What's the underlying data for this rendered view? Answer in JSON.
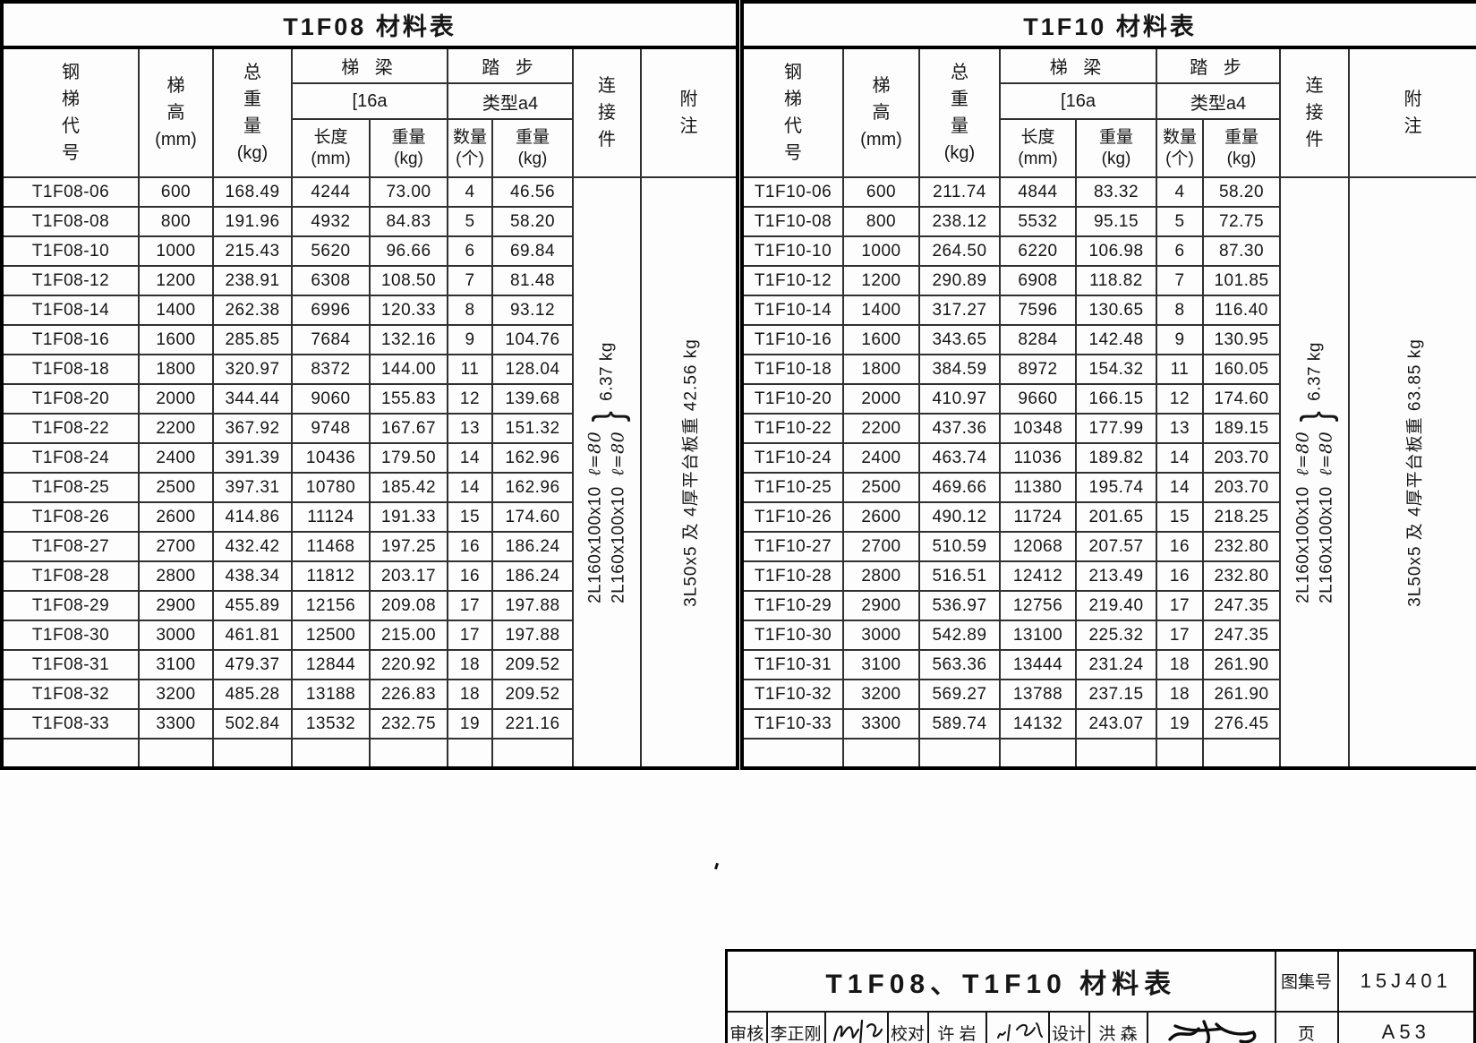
{
  "page": {
    "background": "#fdfdfd",
    "ink": "#161616"
  },
  "tables": [
    {
      "title": "T1F08 材料表",
      "header": {
        "code": "钢\n梯\n代\n号",
        "height": "梯\n高\n(mm)",
        "total_weight": "总\n重\n量\n(kg)",
        "beam_group": "梯  梁",
        "beam_spec": "[16a",
        "step_group": "踏  步",
        "step_type": "类型a4",
        "length": "长度\n(mm)",
        "beam_weight": "重量\n(kg)",
        "qty": "数量\n(个)",
        "step_weight": "重量\n(kg)",
        "connector": "连\n接\n件",
        "note": "附\n注"
      },
      "connector": {
        "spec1": "2L160x100x10",
        "len1": "ℓ=80",
        "spec2": "2L160x100x10",
        "len2": "ℓ=80",
        "weight": "6.37 kg"
      },
      "note": "3L50x5 及 4厚平台板重 42.56 kg",
      "first_row": [
        "T1F08-06",
        "600",
        "168.49",
        "4244",
        "73.00",
        "4",
        "46.56"
      ],
      "rows": [
        [
          "T1F08-08",
          "800",
          "191.96",
          "4932",
          "84.83",
          "5",
          "58.20"
        ],
        [
          "T1F08-10",
          "1000",
          "215.43",
          "5620",
          "96.66",
          "6",
          "69.84"
        ],
        [
          "T1F08-12",
          "1200",
          "238.91",
          "6308",
          "108.50",
          "7",
          "81.48"
        ],
        [
          "T1F08-14",
          "1400",
          "262.38",
          "6996",
          "120.33",
          "8",
          "93.12"
        ],
        [
          "T1F08-16",
          "1600",
          "285.85",
          "7684",
          "132.16",
          "9",
          "104.76"
        ],
        [
          "T1F08-18",
          "1800",
          "320.97",
          "8372",
          "144.00",
          "11",
          "128.04"
        ],
        [
          "T1F08-20",
          "2000",
          "344.44",
          "9060",
          "155.83",
          "12",
          "139.68"
        ],
        [
          "T1F08-22",
          "2200",
          "367.92",
          "9748",
          "167.67",
          "13",
          "151.32"
        ],
        [
          "T1F08-24",
          "2400",
          "391.39",
          "10436",
          "179.50",
          "14",
          "162.96"
        ],
        [
          "T1F08-25",
          "2500",
          "397.31",
          "10780",
          "185.42",
          "14",
          "162.96"
        ],
        [
          "T1F08-26",
          "2600",
          "414.86",
          "11124",
          "191.33",
          "15",
          "174.60"
        ],
        [
          "T1F08-27",
          "2700",
          "432.42",
          "11468",
          "197.25",
          "16",
          "186.24"
        ],
        [
          "T1F08-28",
          "2800",
          "438.34",
          "11812",
          "203.17",
          "16",
          "186.24"
        ],
        [
          "T1F08-29",
          "2900",
          "455.89",
          "12156",
          "209.08",
          "17",
          "197.88"
        ],
        [
          "T1F08-30",
          "3000",
          "461.81",
          "12500",
          "215.00",
          "17",
          "197.88"
        ],
        [
          "T1F08-31",
          "3100",
          "479.37",
          "12844",
          "220.92",
          "18",
          "209.52"
        ],
        [
          "T1F08-32",
          "3200",
          "485.28",
          "13188",
          "226.83",
          "18",
          "209.52"
        ],
        [
          "T1F08-33",
          "3300",
          "502.84",
          "13532",
          "232.75",
          "19",
          "221.16"
        ],
        [
          "",
          "",
          "",
          "",
          "",
          "",
          ""
        ]
      ]
    },
    {
      "title": "T1F10 材料表",
      "header": {
        "code": "钢\n梯\n代\n号",
        "height": "梯\n高\n(mm)",
        "total_weight": "总\n重\n量\n(kg)",
        "beam_group": "梯  梁",
        "beam_spec": "[16a",
        "step_group": "踏  步",
        "step_type": "类型a4",
        "length": "长度\n(mm)",
        "beam_weight": "重量\n(kg)",
        "qty": "数量\n(个)",
        "step_weight": "重量\n(kg)",
        "connector": "连\n接\n件",
        "note": "附\n注"
      },
      "connector": {
        "spec1": "2L160x100x10",
        "len1": "ℓ=80",
        "spec2": "2L160x100x10",
        "len2": "ℓ=80",
        "weight": "6.37 kg"
      },
      "note": "3L50x5 及 4厚平台板重 63.85 kg",
      "first_row": [
        "T1F10-06",
        "600",
        "211.74",
        "4844",
        "83.32",
        "4",
        "58.20"
      ],
      "rows": [
        [
          "T1F10-08",
          "800",
          "238.12",
          "5532",
          "95.15",
          "5",
          "72.75"
        ],
        [
          "T1F10-10",
          "1000",
          "264.50",
          "6220",
          "106.98",
          "6",
          "87.30"
        ],
        [
          "T1F10-12",
          "1200",
          "290.89",
          "6908",
          "118.82",
          "7",
          "101.85"
        ],
        [
          "T1F10-14",
          "1400",
          "317.27",
          "7596",
          "130.65",
          "8",
          "116.40"
        ],
        [
          "T1F10-16",
          "1600",
          "343.65",
          "8284",
          "142.48",
          "9",
          "130.95"
        ],
        [
          "T1F10-18",
          "1800",
          "384.59",
          "8972",
          "154.32",
          "11",
          "160.05"
        ],
        [
          "T1F10-20",
          "2000",
          "410.97",
          "9660",
          "166.15",
          "12",
          "174.60"
        ],
        [
          "T1F10-22",
          "2200",
          "437.36",
          "10348",
          "177.99",
          "13",
          "189.15"
        ],
        [
          "T1F10-24",
          "2400",
          "463.74",
          "11036",
          "189.82",
          "14",
          "203.70"
        ],
        [
          "T1F10-25",
          "2500",
          "469.66",
          "11380",
          "195.74",
          "14",
          "203.70"
        ],
        [
          "T1F10-26",
          "2600",
          "490.12",
          "11724",
          "201.65",
          "15",
          "218.25"
        ],
        [
          "T1F10-27",
          "2700",
          "510.59",
          "12068",
          "207.57",
          "16",
          "232.80"
        ],
        [
          "T1F10-28",
          "2800",
          "516.51",
          "12412",
          "213.49",
          "16",
          "232.80"
        ],
        [
          "T1F10-29",
          "2900",
          "536.97",
          "12756",
          "219.40",
          "17",
          "247.35"
        ],
        [
          "T1F10-30",
          "3000",
          "542.89",
          "13100",
          "225.32",
          "17",
          "247.35"
        ],
        [
          "T1F10-31",
          "3100",
          "563.36",
          "13444",
          "231.24",
          "18",
          "261.90"
        ],
        [
          "T1F10-32",
          "3200",
          "569.27",
          "13788",
          "237.15",
          "18",
          "261.90"
        ],
        [
          "T1F10-33",
          "3300",
          "589.74",
          "14132",
          "243.07",
          "19",
          "276.45"
        ],
        [
          "",
          "",
          "",
          "",
          "",
          "",
          ""
        ]
      ]
    }
  ],
  "title_block": {
    "title": "T1F08、T1F10 材料表",
    "atlas_label": "图集号",
    "atlas_no": "15J401",
    "page_label": "页",
    "page_no": "A53",
    "review_label": "审核",
    "review_name": "李正刚",
    "proof_label": "校对",
    "proof_name": "许 岩",
    "design_label": "设计",
    "design_name": "洪 森"
  }
}
